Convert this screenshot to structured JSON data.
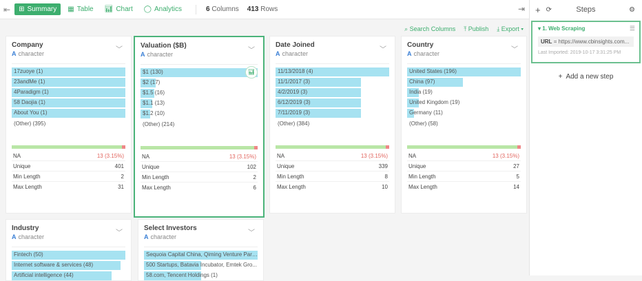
{
  "toolbar": {
    "tabs": [
      {
        "label": "Summary",
        "icon": "grid-icon",
        "active": true
      },
      {
        "label": "Table",
        "icon": "table-icon"
      },
      {
        "label": "Chart",
        "icon": "bar-chart-icon"
      },
      {
        "label": "Analytics",
        "icon": "bulb-icon"
      }
    ],
    "columns_count": "6",
    "columns_label": "Columns",
    "rows_count": "413",
    "rows_label": "Rows"
  },
  "actions": {
    "search": "Search Columns",
    "publish": "Publish",
    "export": "Export"
  },
  "type_label": "character",
  "cards": [
    {
      "title": "Company",
      "selected": false,
      "values": [
        {
          "label": "17zuoye (1)",
          "fraction": 1
        },
        {
          "label": "23andMe (1)",
          "fraction": 1
        },
        {
          "label": "4Paradigm (1)",
          "fraction": 1
        },
        {
          "label": "58 Daojia (1)",
          "fraction": 1
        },
        {
          "label": "About You (1)",
          "fraction": 1
        }
      ],
      "other": "(Other) (395)",
      "stats": [
        {
          "label": "NA",
          "value": "13 (3.15%)"
        },
        {
          "label": "Unique",
          "value": "401"
        },
        {
          "label": "Min Length",
          "value": "2"
        },
        {
          "label": "Max Length",
          "value": "31"
        }
      ]
    },
    {
      "title": "Valuation ($B)",
      "selected": true,
      "values": [
        {
          "label": "$1 (130)",
          "fraction": 1
        },
        {
          "label": "$2 (17)",
          "fraction": 0.13
        },
        {
          "label": "$1.5 (16)",
          "fraction": 0.12
        },
        {
          "label": "$1.1 (13)",
          "fraction": 0.1
        },
        {
          "label": "$1.2 (10)",
          "fraction": 0.08
        }
      ],
      "other": "(Other) (214)",
      "stats": [
        {
          "label": "NA",
          "value": "13 (3.15%)"
        },
        {
          "label": "Unique",
          "value": "102"
        },
        {
          "label": "Min Length",
          "value": "2"
        },
        {
          "label": "Max Length",
          "value": "6"
        }
      ]
    },
    {
      "title": "Date Joined",
      "selected": false,
      "values": [
        {
          "label": "11/13/2018 (4)",
          "fraction": 1
        },
        {
          "label": "11/1/2017 (3)",
          "fraction": 0.75
        },
        {
          "label": "4/2/2019 (3)",
          "fraction": 0.75
        },
        {
          "label": "6/12/2019 (3)",
          "fraction": 0.75
        },
        {
          "label": "7/11/2019 (3)",
          "fraction": 0.75
        }
      ],
      "other": "(Other) (384)",
      "stats": [
        {
          "label": "NA",
          "value": "13 (3.15%)"
        },
        {
          "label": "Unique",
          "value": "339"
        },
        {
          "label": "Min Length",
          "value": "8"
        },
        {
          "label": "Max Length",
          "value": "10"
        }
      ]
    },
    {
      "title": "Country",
      "selected": false,
      "values": [
        {
          "label": "United States (196)",
          "fraction": 1
        },
        {
          "label": "China (97)",
          "fraction": 0.49
        },
        {
          "label": "India (19)",
          "fraction": 0.1
        },
        {
          "label": "United Kingdom (19)",
          "fraction": 0.1
        },
        {
          "label": "Germany (11)",
          "fraction": 0.06
        }
      ],
      "other": "(Other) (58)",
      "stats": [
        {
          "label": "NA",
          "value": "13 (3.15%)"
        },
        {
          "label": "Unique",
          "value": "27"
        },
        {
          "label": "Min Length",
          "value": "5"
        },
        {
          "label": "Max Length",
          "value": "14"
        }
      ]
    },
    {
      "title": "Industry",
      "selected": false,
      "values": [
        {
          "label": "Fintech (50)",
          "fraction": 1
        },
        {
          "label": "Internet software & services (48)",
          "fraction": 0.96
        },
        {
          "label": "Artificial intelligence (44)",
          "fraction": 0.88
        }
      ]
    },
    {
      "title": "Select Investors",
      "selected": false,
      "values": [
        {
          "label": "Sequoia Capital China, Qiming Venture Part...",
          "fraction": 1
        },
        {
          "label": "500 Startups, Batavia Incubator, Emtek Gro...",
          "fraction": 0.5
        },
        {
          "label": "58.com, Tencent Holdings (1)",
          "fraction": 0.5
        }
      ]
    }
  ],
  "panel": {
    "title": "Steps",
    "step": {
      "title": "1. Web Scraping",
      "url_key": "URL",
      "url_value": "= https://www.cbinsights.com...",
      "last_imported": "Last Imported: 2019-10-17 3:31:25 PM"
    },
    "add_step": "Add a new step"
  },
  "colors": {
    "accent": "#3dae6e",
    "bar": "#a6e2f1",
    "na": "#e2665f"
  }
}
